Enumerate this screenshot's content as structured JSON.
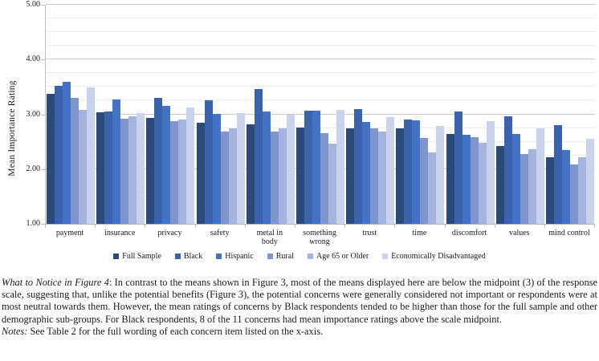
{
  "chart_data": {
    "type": "bar",
    "title": "",
    "xlabel": "",
    "ylabel": "Mean Importance Rating",
    "ylim": [
      1.0,
      5.0
    ],
    "minor_grid_step": 0.25,
    "grid": true,
    "legend_position": "bottom",
    "yticks": [
      {
        "label": "5.00",
        "value": 5.0
      },
      {
        "label": "4.00",
        "value": 4.0
      },
      {
        "label": "3.00",
        "value": 3.0
      },
      {
        "label": "2.00",
        "value": 2.0
      },
      {
        "label": "1.00",
        "value": 1.0
      }
    ],
    "categories": [
      "payment",
      "insurance",
      "privacy",
      "safety",
      "metal in body",
      "something wrong",
      "trust",
      "time",
      "discomfort",
      "values",
      "mind control"
    ],
    "series": [
      {
        "name": "Full Sample",
        "color": "#2B4979",
        "values": [
          3.37,
          3.04,
          2.93,
          2.85,
          2.82,
          2.76,
          2.75,
          2.74,
          2.64,
          2.42,
          2.22
        ]
      },
      {
        "name": "Black",
        "color": "#3B63AC",
        "values": [
          3.52,
          3.05,
          3.3,
          3.25,
          3.46,
          3.07,
          3.1,
          2.91,
          3.05,
          2.97,
          2.81
        ]
      },
      {
        "name": "Hispanic",
        "color": "#4472C4",
        "values": [
          3.59,
          3.27,
          3.15,
          3.01,
          3.05,
          3.06,
          2.86,
          2.89,
          2.62,
          2.64,
          2.35
        ]
      },
      {
        "name": "Rural",
        "color": "#7E95CE",
        "values": [
          3.3,
          2.92,
          2.87,
          2.68,
          2.69,
          2.65,
          2.75,
          2.57,
          2.58,
          2.28,
          2.09
        ]
      },
      {
        "name": "Age 65 or Older",
        "color": "#A5B4DE",
        "values": [
          3.08,
          2.96,
          2.9,
          2.75,
          2.75,
          2.46,
          2.68,
          2.31,
          2.48,
          2.37,
          2.22
        ]
      },
      {
        "name": "Economically Disadvantaged",
        "color": "#C9D3EC",
        "values": [
          3.49,
          3.02,
          3.12,
          3.03,
          3.0,
          3.08,
          2.95,
          2.79,
          2.88,
          2.74,
          2.55
        ]
      }
    ]
  },
  "caption": {
    "lead_italic": "What to Notice in Figure 4",
    "body": ": In contrast to the means shown in Figure 3, most of the means displayed here are below the midpoint (3) of the response scale, suggesting that, unlike the potential benefits (Figure 3), the potential concerns were generally considered not important or respondents were at most neutral towards them. However, the mean ratings of concerns by Black respondents tended to be higher than those for the full sample and other demographic sub-groups. For Black respondents, 8 of the 11 concerns had mean importance ratings above the scale midpoint.",
    "notes_italic": "Notes:",
    "notes_body": " See Table 2 for the full wording of each concern item listed on the x-axis."
  }
}
